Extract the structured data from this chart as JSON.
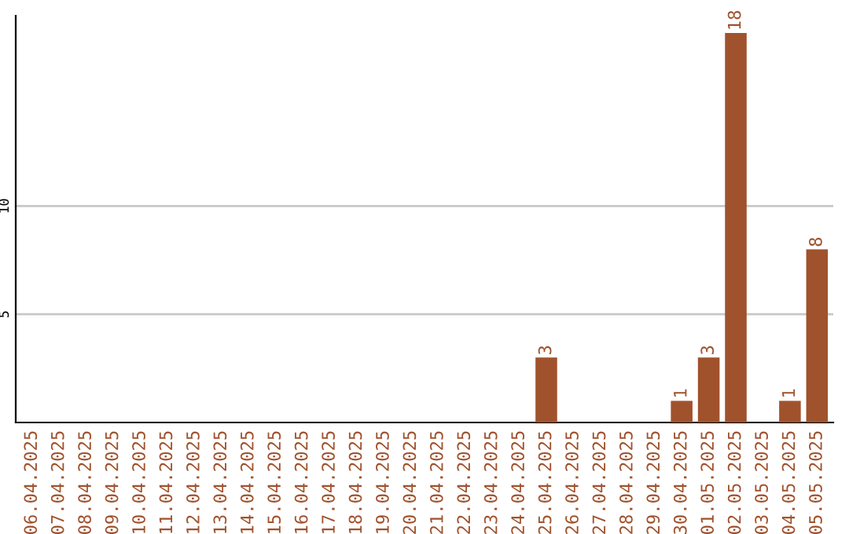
{
  "chart_data": {
    "type": "bar",
    "categories": [
      "06.04.2025",
      "07.04.2025",
      "08.04.2025",
      "09.04.2025",
      "10.04.2025",
      "11.04.2025",
      "12.04.2025",
      "13.04.2025",
      "14.04.2025",
      "15.04.2025",
      "16.04.2025",
      "17.04.2025",
      "18.04.2025",
      "19.04.2025",
      "20.04.2025",
      "21.04.2025",
      "22.04.2025",
      "23.04.2025",
      "24.04.2025",
      "25.04.2025",
      "26.04.2025",
      "27.04.2025",
      "28.04.2025",
      "29.04.2025",
      "30.04.2025",
      "01.05.2025",
      "02.05.2025",
      "03.05.2025",
      "04.05.2025",
      "05.05.2025"
    ],
    "values": [
      0,
      0,
      0,
      0,
      0,
      0,
      0,
      0,
      0,
      0,
      0,
      0,
      0,
      0,
      0,
      0,
      0,
      0,
      0,
      3,
      0,
      0,
      0,
      0,
      1,
      3,
      18,
      0,
      1,
      8
    ],
    "value_labels": [
      null,
      null,
      null,
      null,
      null,
      null,
      null,
      null,
      null,
      null,
      null,
      null,
      null,
      null,
      null,
      null,
      null,
      null,
      null,
      "3",
      null,
      null,
      null,
      null,
      "1",
      "3",
      "18",
      null,
      "1",
      "8"
    ],
    "color": "#a0522d",
    "ylim": [
      0,
      18.8
    ],
    "yticks": [
      5,
      10
    ],
    "grid": "y"
  }
}
